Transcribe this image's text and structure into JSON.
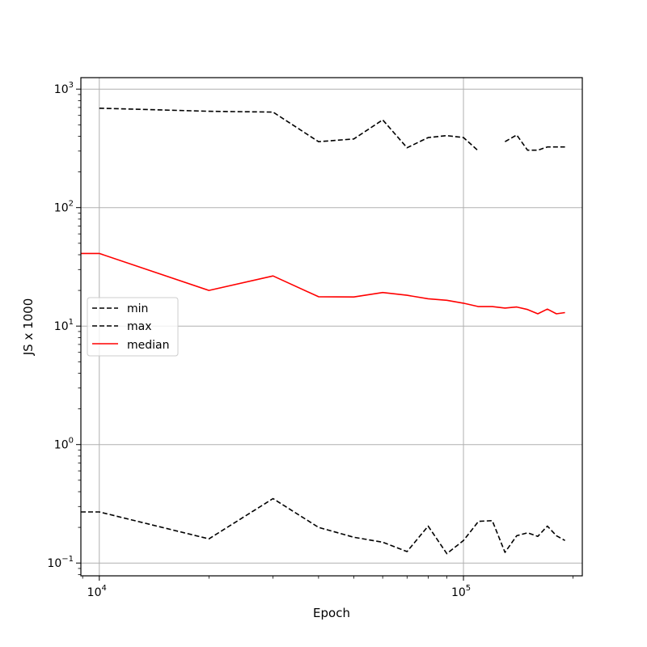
{
  "chart_data": {
    "type": "line",
    "title": "",
    "xlabel": "Epoch",
    "ylabel": "JS x 1000",
    "xscale": "log",
    "yscale": "log",
    "xlim": [
      8900,
      212000
    ],
    "ylim": [
      0.078,
      1250
    ],
    "grid": true,
    "legend": {
      "position": "center-left"
    },
    "x_major_ticks": [
      {
        "value": 10000,
        "base": "10",
        "exp": "4"
      },
      {
        "value": 100000,
        "base": "10",
        "exp": "5"
      }
    ],
    "y_major_ticks": [
      {
        "value": 0.1,
        "base": "10",
        "exp": "−1"
      },
      {
        "value": 1,
        "base": "10",
        "exp": "0"
      },
      {
        "value": 10,
        "base": "10",
        "exp": "1"
      },
      {
        "value": 100,
        "base": "10",
        "exp": "2"
      },
      {
        "value": 1000,
        "base": "10",
        "exp": "3"
      }
    ],
    "series": [
      {
        "name": "min",
        "color": "#000000",
        "style": "dashed",
        "points": [
          [
            8900,
            0.27
          ],
          [
            10000,
            0.27
          ],
          [
            20000,
            0.16
          ],
          [
            30000,
            0.35
          ],
          [
            40000,
            0.2
          ],
          [
            50000,
            0.165
          ],
          [
            60000,
            0.15
          ],
          [
            70000,
            0.125
          ],
          [
            80000,
            0.205
          ],
          [
            90000,
            0.12
          ],
          [
            100000,
            0.155
          ],
          [
            110000,
            0.225
          ],
          [
            120000,
            0.228
          ],
          [
            130000,
            0.123
          ],
          [
            140000,
            0.17
          ],
          [
            150000,
            0.18
          ],
          [
            160000,
            0.168
          ],
          [
            170000,
            0.205
          ],
          [
            180000,
            0.17
          ],
          [
            190000,
            0.155
          ]
        ]
      },
      {
        "name": "max",
        "color": "#000000",
        "style": "dashed",
        "points": [
          [
            10000,
            690
          ],
          [
            20000,
            650
          ],
          [
            30000,
            640
          ],
          [
            40000,
            360
          ],
          [
            50000,
            380
          ],
          [
            60000,
            550
          ],
          [
            70000,
            320
          ],
          [
            80000,
            390
          ],
          [
            90000,
            405
          ],
          [
            100000,
            390
          ],
          [
            110000,
            300
          ],
          [
            120000,
            null
          ],
          [
            130000,
            360
          ],
          [
            140000,
            410
          ],
          [
            150000,
            305
          ],
          [
            160000,
            305
          ],
          [
            170000,
            325
          ],
          [
            180000,
            325
          ],
          [
            190000,
            325
          ]
        ]
      },
      {
        "name": "median",
        "color": "#ff0000",
        "style": "solid",
        "points": [
          [
            8900,
            41
          ],
          [
            10000,
            41
          ],
          [
            20000,
            20
          ],
          [
            30000,
            26.5
          ],
          [
            40000,
            17.7
          ],
          [
            50000,
            17.6
          ],
          [
            60000,
            19.2
          ],
          [
            70000,
            18.2
          ],
          [
            80000,
            17.0
          ],
          [
            90000,
            16.5
          ],
          [
            100000,
            15.6
          ],
          [
            110000,
            14.6
          ],
          [
            120000,
            14.6
          ],
          [
            130000,
            14.2
          ],
          [
            140000,
            14.5
          ],
          [
            150000,
            13.8
          ],
          [
            160000,
            12.7
          ],
          [
            170000,
            13.9
          ],
          [
            180000,
            12.7
          ],
          [
            190000,
            13.0
          ]
        ]
      }
    ]
  }
}
